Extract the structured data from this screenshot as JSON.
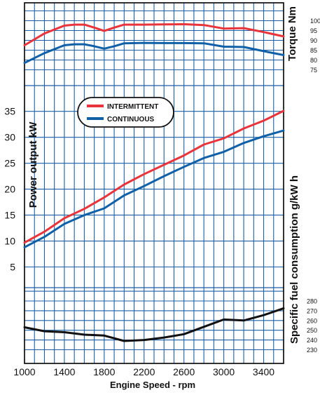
{
  "chart_data": {
    "type": "line",
    "xlabel": "Engine Speed - rpm",
    "x_ticks": [
      1000,
      1400,
      1800,
      2200,
      2600,
      3000,
      3400
    ],
    "xlim": [
      1000,
      3600
    ],
    "grid": true,
    "legend": {
      "position": "top-center",
      "entries": [
        "INTERMITTENT",
        "CONTINUOUS"
      ]
    },
    "colors": {
      "intermittent": "#e8343a",
      "continuous": "#1060a8",
      "sfc": "#111111",
      "grid": "#1a5fa8"
    },
    "panels": [
      {
        "name": "torque",
        "ylabel": "Torque Nm",
        "y_ticks": [
          75,
          80,
          85,
          90,
          95,
          100
        ],
        "series": [
          {
            "name": "INTERMITTENT",
            "x": [
              1000,
              1200,
              1400,
              1500,
              1600,
              1700,
              1800,
              1900,
              2000,
              2200,
              2400,
              2600,
              2800,
              3000,
              3200,
              3400,
              3600
            ],
            "y": [
              87.5,
              93.5,
              97.5,
              98.0,
              98.0,
              96.5,
              94.8,
              96.5,
              98.0,
              98.0,
              98.1,
              98.2,
              97.8,
              96.0,
              96.2,
              94.2,
              92.0
            ]
          },
          {
            "name": "CONTINUOUS",
            "x": [
              1000,
              1200,
              1400,
              1500,
              1600,
              1700,
              1800,
              1900,
              2000,
              2200,
              2400,
              2600,
              2800,
              3000,
              3200,
              3400,
              3600
            ],
            "y": [
              78.5,
              83.5,
              87.5,
              88.0,
              88.0,
              87.0,
              85.8,
              87.0,
              88.5,
              88.7,
              88.6,
              88.6,
              88.5,
              86.8,
              86.6,
              84.5,
              82.5
            ]
          }
        ]
      },
      {
        "name": "power",
        "ylabel": "Power output kW",
        "y_ticks": [
          5,
          10,
          15,
          20,
          25,
          30,
          35
        ],
        "series": [
          {
            "name": "INTERMITTENT",
            "x": [
              1000,
              1200,
              1400,
              1600,
              1800,
              2000,
              2200,
              2400,
              2600,
              2800,
              3000,
              3200,
              3400,
              3600
            ],
            "y": [
              9.7,
              11.8,
              14.4,
              16.2,
              18.4,
              20.9,
              22.9,
              24.7,
              26.5,
              28.6,
              29.8,
              31.7,
              33.2,
              35.1
            ]
          },
          {
            "name": "CONTINUOUS",
            "x": [
              1000,
              1200,
              1400,
              1600,
              1800,
              2000,
              2200,
              2400,
              2600,
              2800,
              3000,
              3200,
              3400,
              3600
            ],
            "y": [
              8.8,
              10.8,
              13.3,
              15.0,
              16.3,
              18.8,
              20.6,
              22.5,
              24.3,
              26.0,
              27.2,
              28.9,
              30.2,
              31.3
            ]
          }
        ]
      },
      {
        "name": "sfc",
        "ylabel": "Specific fuel consumption g/kW h",
        "y_ticks": [
          230,
          240,
          250,
          260,
          270,
          280
        ],
        "series": [
          {
            "name": "",
            "x": [
              1000,
              1200,
              1400,
              1600,
              1800,
              2000,
              2200,
              2400,
              2600,
              2800,
              3000,
              3200,
              3400,
              3600
            ],
            "y": [
              253,
              249,
              248,
              245.5,
              244.5,
              239,
              240,
              242.5,
              246,
              253.5,
              261,
              260,
              265.5,
              272.5
            ]
          }
        ]
      }
    ]
  }
}
